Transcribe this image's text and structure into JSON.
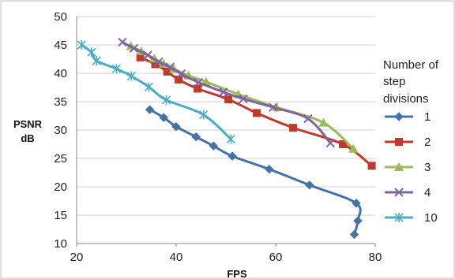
{
  "chart_data": {
    "type": "line",
    "title": "",
    "xlabel": "FPS",
    "ylabel_lines": [
      "PSNR",
      "dB"
    ],
    "xlim": [
      20,
      80
    ],
    "ylim": [
      10,
      50
    ],
    "xticks": [
      20,
      40,
      60,
      80
    ],
    "yticks": [
      10,
      15,
      20,
      25,
      30,
      35,
      40,
      45,
      50
    ],
    "grid": "horizontal",
    "legend": {
      "position": "right",
      "title_lines": [
        "Number of",
        "step",
        "divisions"
      ]
    },
    "series": [
      {
        "name": "1",
        "color": "#4572A7",
        "marker": "diamond",
        "points": [
          [
            34.7,
            33.6
          ],
          [
            37.5,
            32.2
          ],
          [
            40.0,
            30.6
          ],
          [
            44.0,
            28.8
          ],
          [
            47.5,
            27.2
          ],
          [
            51.3,
            25.4
          ],
          [
            58.7,
            23.1
          ],
          [
            66.8,
            20.3
          ],
          [
            76.2,
            17.1
          ],
          [
            76.5,
            14.0
          ],
          [
            75.8,
            11.6
          ]
        ]
      },
      {
        "name": "2",
        "color": "#C0392B",
        "marker": "square",
        "points": [
          [
            32.8,
            42.8
          ],
          [
            35.8,
            41.6
          ],
          [
            38.2,
            40.3
          ],
          [
            40.5,
            38.9
          ],
          [
            44.3,
            37.3
          ],
          [
            50.5,
            35.4
          ],
          [
            56.2,
            33.0
          ],
          [
            63.5,
            30.4
          ],
          [
            73.5,
            27.5
          ],
          [
            79.3,
            23.7
          ]
        ]
      },
      {
        "name": "3",
        "color": "#9BBB59",
        "marker": "triangle",
        "points": [
          [
            30.9,
            44.8
          ],
          [
            33.0,
            43.9
          ],
          [
            35.6,
            42.6
          ],
          [
            37.5,
            41.7
          ],
          [
            39.5,
            40.8
          ],
          [
            42.5,
            39.6
          ],
          [
            46.0,
            38.5
          ],
          [
            52.5,
            36.3
          ],
          [
            60.2,
            34.0
          ],
          [
            69.6,
            31.3
          ],
          [
            75.6,
            26.7
          ]
        ]
      },
      {
        "name": "4",
        "color": "#8064A2",
        "marker": "x",
        "points": [
          [
            29.2,
            45.5
          ],
          [
            31.5,
            44.4
          ],
          [
            34.3,
            43.2
          ],
          [
            36.5,
            42.0
          ],
          [
            38.8,
            41.1
          ],
          [
            41.0,
            39.9
          ],
          [
            44.5,
            38.4
          ],
          [
            49.5,
            36.7
          ],
          [
            53.5,
            35.5
          ],
          [
            59.5,
            34.0
          ],
          [
            66.5,
            32.0
          ],
          [
            71.0,
            27.7
          ]
        ]
      },
      {
        "name": "10",
        "color": "#4BACC6",
        "marker": "asterisk",
        "points": [
          [
            21.0,
            45.0
          ],
          [
            23.0,
            43.7
          ],
          [
            24.0,
            42.2
          ],
          [
            28.0,
            40.8
          ],
          [
            31.0,
            39.5
          ],
          [
            34.5,
            37.6
          ],
          [
            38.0,
            35.3
          ],
          [
            45.5,
            32.7
          ],
          [
            51.0,
            28.4
          ]
        ]
      }
    ]
  }
}
